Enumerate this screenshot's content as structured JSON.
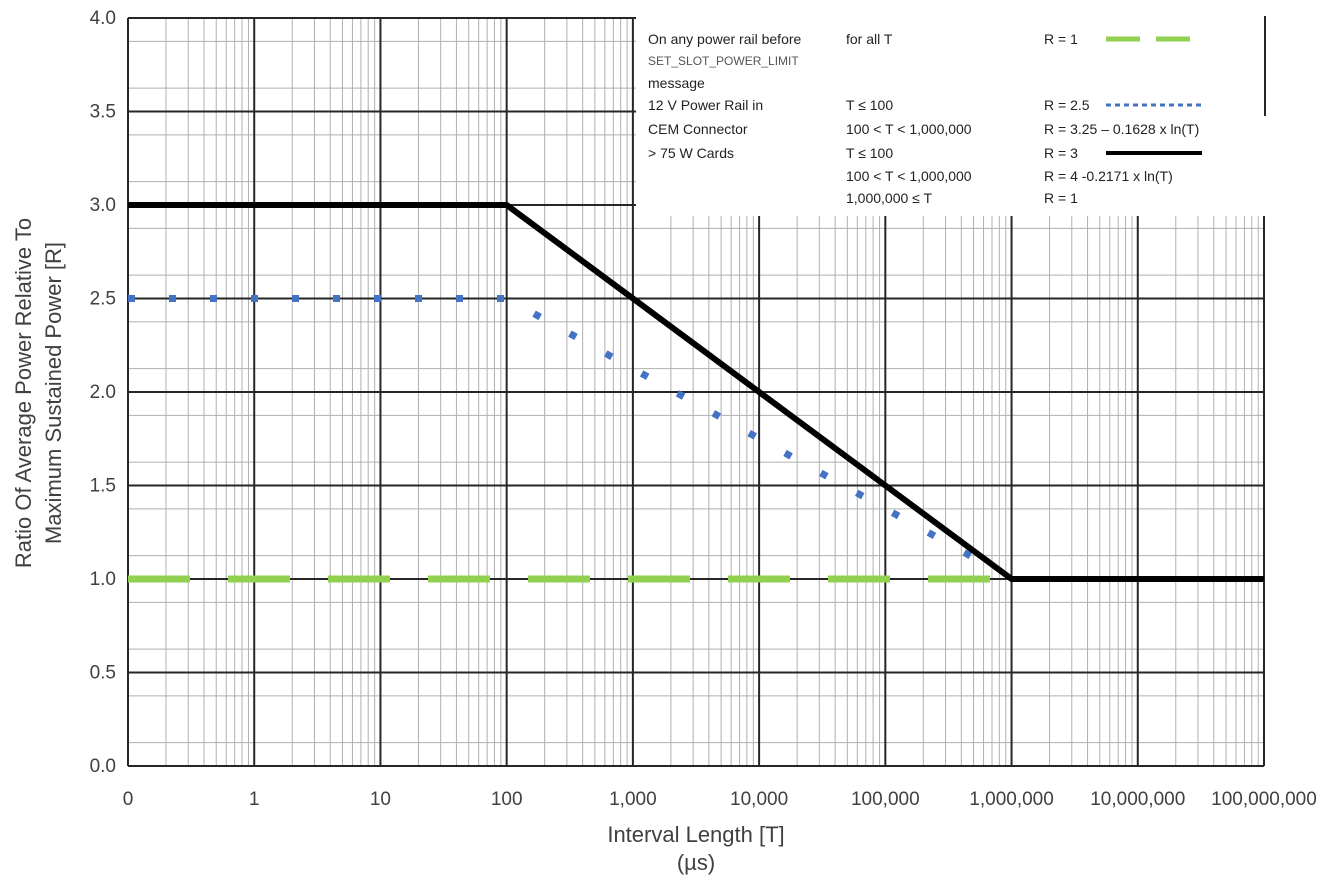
{
  "chart_data": {
    "type": "line",
    "xscale": "log",
    "x_ticks": [
      {
        "value": 0.1,
        "label": "0"
      },
      {
        "value": 1,
        "label": "1"
      },
      {
        "value": 10,
        "label": "10"
      },
      {
        "value": 100,
        "label": "100"
      },
      {
        "value": 1000,
        "label": "1,000"
      },
      {
        "value": 10000,
        "label": "10,000"
      },
      {
        "value": 100000,
        "label": "100,000"
      },
      {
        "value": 1000000,
        "label": "1,000,000"
      },
      {
        "value": 10000000,
        "label": "10,000,000"
      },
      {
        "value": 100000000,
        "label": "100,000,000"
      }
    ],
    "xlim": [
      0.1,
      100000000
    ],
    "ylim": [
      0,
      4
    ],
    "y_ticks": [
      "0.0",
      "0.5",
      "1.0",
      "1.5",
      "2.0",
      "2.5",
      "3.0",
      "3.5",
      "4.0"
    ],
    "xlabel_line1": "Interval Length  [T]",
    "xlabel_line2": "(µs)",
    "ylabel_line1": "Ratio Of Average Power Relative To",
    "ylabel_line2": "Maximum Sustained Power  [R]",
    "grid": true,
    "series": [
      {
        "style": "dashed",
        "color": "#92d050",
        "x": [
          0.1,
          1000000
        ],
        "y": [
          1.0,
          1.0
        ]
      },
      {
        "style": "dotted",
        "color": "#4472c4",
        "x": [
          0.1,
          100,
          500000
        ],
        "y": [
          2.5,
          2.5,
          1.114
        ]
      },
      {
        "style": "solid",
        "color": "#000000",
        "x": [
          0.1,
          100,
          1000000,
          100000000
        ],
        "y": [
          3.0,
          3.0,
          1.0,
          1.0
        ]
      }
    ],
    "legend": {
      "placement": "top-right",
      "rows": [
        {
          "c1": "On any power rail before",
          "c2": "for all T",
          "c3": "R = 1",
          "swatch": "dashed"
        },
        {
          "c1": "SET_SLOT_POWER_LIMIT",
          "c2": "",
          "c3": "",
          "swatch": "",
          "small": true
        },
        {
          "c1": "message",
          "c2": "",
          "c3": "",
          "swatch": ""
        },
        {
          "c1": "12 V Power Rail in",
          "c2": "T ≤ 100",
          "c3": "R = 2.5",
          "swatch": "dotted"
        },
        {
          "c1": "CEM Connector",
          "c2": "100 < T < 1,000,000",
          "c3": "R = 3.25 – 0.1628 x ln(T)",
          "swatch": ""
        },
        {
          "c1": "> 75 W Cards",
          "c2": "T ≤ 100",
          "c3": "R = 3",
          "swatch": "solid"
        },
        {
          "c1": "",
          "c2": "100 < T < 1,000,000",
          "c3": "R = 4 -0.2171 x  ln(T)",
          "swatch": ""
        },
        {
          "c1": "",
          "c2": "1,000,000  ≤ T",
          "c3": "R = 1",
          "swatch": ""
        }
      ]
    }
  }
}
